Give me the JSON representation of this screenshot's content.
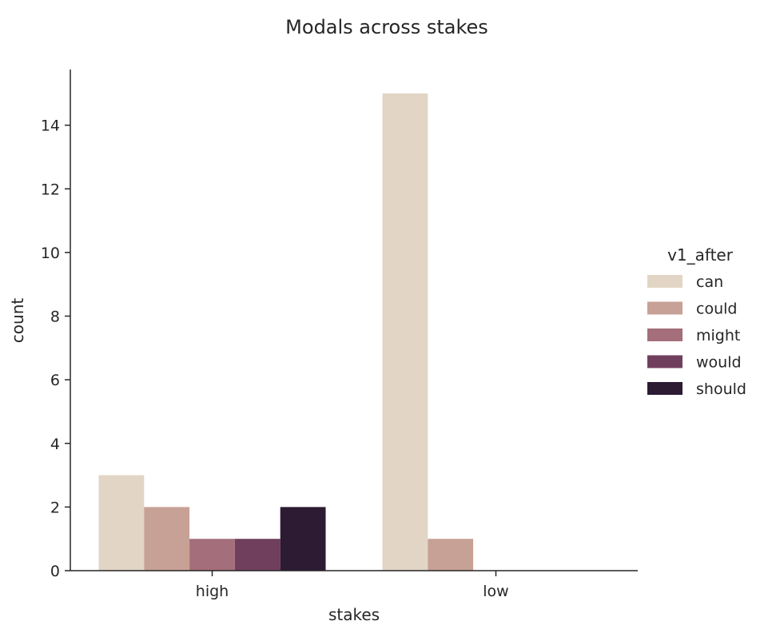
{
  "chart_data": {
    "type": "bar",
    "title": "Modals across stakes",
    "xlabel": "stakes",
    "ylabel": "count",
    "categories": [
      "high",
      "low"
    ],
    "ylim": [
      0,
      15.75
    ],
    "yticks": [
      0,
      2,
      4,
      6,
      8,
      10,
      12,
      14
    ],
    "grid": false,
    "legend": {
      "title": "v1_after",
      "placement": "right"
    },
    "series": [
      {
        "name": "can",
        "color": "#e2d5c5",
        "values": [
          3,
          15
        ]
      },
      {
        "name": "could",
        "color": "#c8a196",
        "values": [
          2,
          1
        ]
      },
      {
        "name": "might",
        "color": "#a46e7a",
        "values": [
          1,
          0
        ]
      },
      {
        "name": "would",
        "color": "#713f5e",
        "values": [
          1,
          0
        ]
      },
      {
        "name": "should",
        "color": "#2d1a33",
        "values": [
          2,
          0
        ]
      }
    ]
  }
}
